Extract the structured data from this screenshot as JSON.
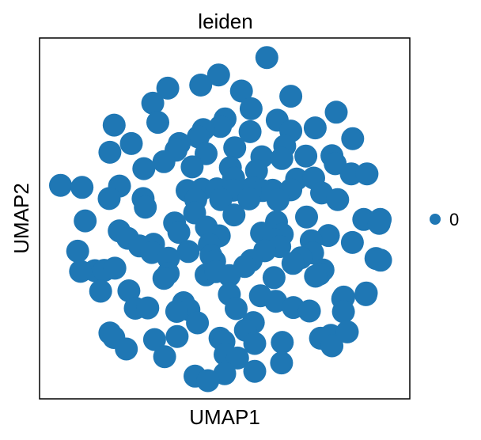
{
  "chart_data": {
    "type": "scatter",
    "title": "leiden",
    "xlabel": "UMAP1",
    "ylabel": "UMAP2",
    "xlim": [
      0,
      100
    ],
    "ylim": [
      0,
      100
    ],
    "grid": false,
    "xticks": false,
    "yticks": false,
    "legend_placement": "right",
    "legend": [
      {
        "label": "0",
        "color": "#1f77b4"
      }
    ],
    "series": [
      {
        "color": "#1f77b4",
        "points": [
          [
            61.8,
            96.2
          ],
          [
            48.3,
            91.2
          ],
          [
            43.3,
            88.3
          ],
          [
            34.1,
            87.4
          ],
          [
            54.7,
            86.6
          ],
          [
            68.5,
            85.1
          ],
          [
            29.9,
            83.1
          ],
          [
            57.4,
            81.5
          ],
          [
            81.2,
            80.5
          ],
          [
            50.1,
            78.6
          ],
          [
            64.7,
            78.2
          ],
          [
            31.3,
            77.6
          ],
          [
            19.1,
            76.8
          ],
          [
            48.8,
            76.4
          ],
          [
            75.3,
            76.0
          ],
          [
            44.0,
            75.5
          ],
          [
            57.1,
            74.9
          ],
          [
            68.5,
            75.1
          ],
          [
            42.6,
            73.4
          ],
          [
            85.8,
            72.9
          ],
          [
            23.9,
            71.5
          ],
          [
            37.3,
            71.5
          ],
          [
            52.8,
            70.3
          ],
          [
            66.8,
            70.8
          ],
          [
            36.4,
            69.6
          ],
          [
            17.9,
            69.0
          ],
          [
            44.8,
            68.6
          ],
          [
            60.4,
            67.7
          ],
          [
            72.7,
            67.9
          ],
          [
            80.0,
            68.0
          ],
          [
            66.0,
            67.2
          ],
          [
            33.0,
            66.3
          ],
          [
            80.9,
            65.7
          ],
          [
            40.9,
            64.8
          ],
          [
            51.6,
            64.6
          ],
          [
            27.4,
            64.3
          ],
          [
            58.9,
            63.7
          ],
          [
            85.4,
            62.8
          ],
          [
            89.8,
            62.8
          ],
          [
            70.1,
            61.3
          ],
          [
            74.9,
            61.6
          ],
          [
            52.5,
            61.6
          ],
          [
            4.1,
            59.5
          ],
          [
            10.1,
            58.9
          ],
          [
            20.6,
            59.3
          ],
          [
            39.5,
            58.0
          ],
          [
            43.7,
            58.4
          ],
          [
            57.8,
            58.8
          ],
          [
            47.8,
            58.5
          ],
          [
            60.6,
            58.0
          ],
          [
            63.4,
            58.1
          ],
          [
            68.5,
            58.2
          ],
          [
            52.4,
            58.1
          ],
          [
            77.1,
            57.3
          ],
          [
            17.7,
            55.7
          ],
          [
            27.2,
            55.7
          ],
          [
            41.9,
            55.4
          ],
          [
            48.9,
            55.4
          ],
          [
            56.8,
            55.6
          ],
          [
            64.9,
            55.3
          ],
          [
            81.6,
            55.4
          ],
          [
            27.8,
            53.2
          ],
          [
            41.6,
            51.6
          ],
          [
            52.6,
            51.0
          ],
          [
            88.9,
            49.7
          ],
          [
            93.5,
            49.7
          ],
          [
            93.2,
            48.6
          ],
          [
            11.0,
            49.3
          ],
          [
            36.0,
            48.7
          ],
          [
            64.5,
            49.0
          ],
          [
            72.9,
            50.4
          ],
          [
            44.9,
            47.5
          ],
          [
            20.5,
            46.4
          ],
          [
            37.2,
            46.0
          ],
          [
            60.3,
            45.8
          ],
          [
            48.5,
            45.0
          ],
          [
            66.1,
            45.4
          ],
          [
            79.0,
            45.1
          ],
          [
            22.9,
            44.3
          ],
          [
            26.2,
            42.1
          ],
          [
            30.1,
            42.6
          ],
          [
            63.7,
            43.9
          ],
          [
            45.7,
            42.5
          ],
          [
            74.2,
            43.6
          ],
          [
            85.7,
            43.1
          ],
          [
            8.9,
            40.6
          ],
          [
            65.4,
            41.9
          ],
          [
            29.6,
            40.2
          ],
          [
            39.8,
            40.5
          ],
          [
            61.2,
            40.7
          ],
          [
            46.2,
            39.3
          ],
          [
            74.6,
            40.1
          ],
          [
            34.3,
            38.6
          ],
          [
            57.4,
            37.9
          ],
          [
            71.3,
            38.7
          ],
          [
            92.3,
            38.5
          ],
          [
            93.6,
            38.0
          ],
          [
            47.2,
            37.7
          ],
          [
            69.1,
            37.1
          ],
          [
            55.6,
            36.2
          ],
          [
            13.7,
            35.0
          ],
          [
            16.3,
            35.1
          ],
          [
            19.3,
            35.7
          ],
          [
            77.5,
            35.2
          ],
          [
            34.2,
            34.2
          ],
          [
            44.8,
            33.8
          ],
          [
            47.5,
            34.7
          ],
          [
            51.3,
            33.6
          ],
          [
            9.7,
            34.8
          ],
          [
            63.8,
            33.0
          ],
          [
            76.5,
            34.0
          ],
          [
            75.4,
            33.4
          ],
          [
            33.0,
            32.8
          ],
          [
            60.0,
            27.8
          ],
          [
            23.2,
            29.2
          ],
          [
            15.3,
            29.1
          ],
          [
            83.0,
            26.9
          ],
          [
            83.3,
            27.4
          ],
          [
            38.5,
            25.8
          ],
          [
            51.3,
            28.2
          ],
          [
            89.5,
            28.1
          ],
          [
            89.6,
            28.6
          ],
          [
            64.3,
            26.2
          ],
          [
            69.2,
            24.4
          ],
          [
            25.0,
            24.2
          ],
          [
            28.5,
            24.3
          ],
          [
            40.0,
            23.8
          ],
          [
            53.2,
            24.1
          ],
          [
            83.2,
            23.2
          ],
          [
            36.6,
            23.3
          ],
          [
            73.7,
            23.4
          ],
          [
            42.4,
            20.0
          ],
          [
            58.0,
            20.1
          ],
          [
            17.9,
            17.1
          ],
          [
            55.8,
            17.9
          ],
          [
            79.7,
            16.4
          ],
          [
            84.3,
            17.4
          ],
          [
            36.7,
            16.1
          ],
          [
            76.8,
            15.6
          ],
          [
            48.7,
            15.6
          ],
          [
            49.8,
            14.6
          ],
          [
            58.4,
            14.1
          ],
          [
            19.0,
            15.8
          ],
          [
            30.4,
            15.2
          ],
          [
            66.1,
            14.4
          ],
          [
            22.5,
            12.5
          ],
          [
            80.0,
            13.4
          ],
          [
            50.1,
            10.9
          ],
          [
            33.2,
            10.3
          ],
          [
            53.6,
            9.9
          ],
          [
            65.9,
            8.5
          ],
          [
            50.0,
            5.4
          ],
          [
            41.7,
            4.7
          ],
          [
            58.4,
            6.1
          ],
          [
            45.3,
            3.4
          ]
        ]
      }
    ]
  }
}
